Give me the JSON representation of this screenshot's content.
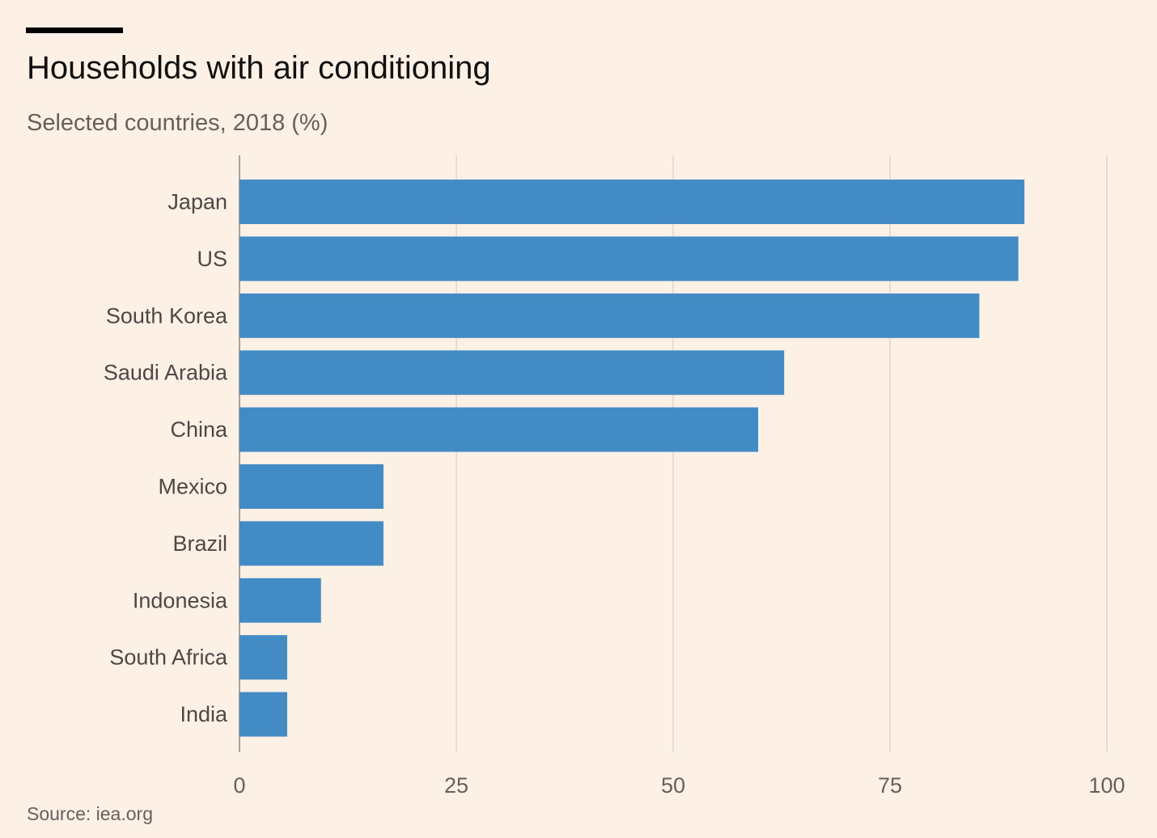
{
  "chart_data": {
    "type": "bar",
    "orientation": "horizontal",
    "title": "Households with air conditioning",
    "subtitle": "Selected countries, 2018 (%)",
    "categories": [
      "Japan",
      "US",
      "South Korea",
      "Saudi Arabia",
      "China",
      "Mexico",
      "Brazil",
      "Indonesia",
      "South Africa",
      "India"
    ],
    "values": [
      90.5,
      89.8,
      85.3,
      62.8,
      59.8,
      16.6,
      16.6,
      9.4,
      5.5,
      5.5
    ],
    "xlim": [
      0,
      100
    ],
    "xticks": [
      "0",
      "25",
      "50",
      "75",
      "100"
    ],
    "grid": "vertical",
    "bar_color": "#428bc4",
    "source": "Source: iea.org"
  }
}
